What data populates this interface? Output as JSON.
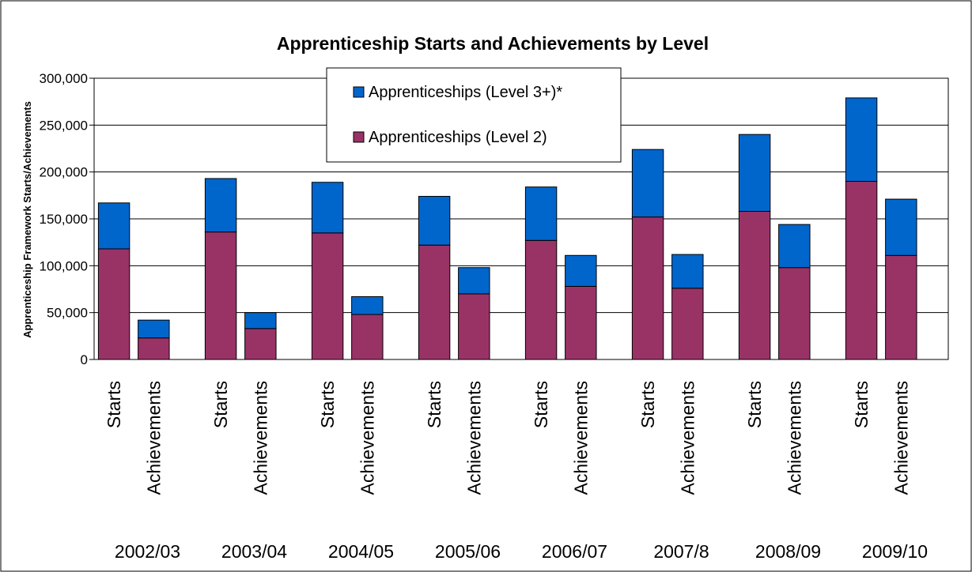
{
  "chart_data": {
    "type": "bar",
    "stacked": true,
    "title": "Apprenticeship Starts and Achievements by Level",
    "ylabel": "Apprenticeship Framework Starts/Achievements",
    "ylim": [
      0,
      300000
    ],
    "yticks": [
      0,
      50000,
      100000,
      150000,
      200000,
      250000,
      300000
    ],
    "ytick_labels": [
      "0",
      "50,000",
      "100,000",
      "150,000",
      "200,000",
      "250,000",
      "300,000"
    ],
    "grid": true,
    "legend_position": "top-center",
    "groups": [
      "2002/03",
      "2003/04",
      "2004/05",
      "2005/06",
      "2006/07",
      "2007/8",
      "2008/09",
      "2009/10"
    ],
    "subcategories": [
      "Starts",
      "Achievements"
    ],
    "series": [
      {
        "name": "Apprenticeships (Level 2)",
        "color": "#993366",
        "values": [
          118000,
          23000,
          136000,
          33000,
          135000,
          48000,
          122000,
          70000,
          127000,
          78000,
          152000,
          76000,
          158000,
          98000,
          190000,
          111000
        ]
      },
      {
        "name": "Apprenticeships (Level 3+)*",
        "color": "#0066cc",
        "values": [
          49000,
          19000,
          57000,
          17000,
          54000,
          19000,
          52000,
          28000,
          57000,
          33000,
          72000,
          36000,
          82000,
          46000,
          89000,
          60000
        ]
      }
    ],
    "legend_order": [
      1,
      0
    ]
  }
}
